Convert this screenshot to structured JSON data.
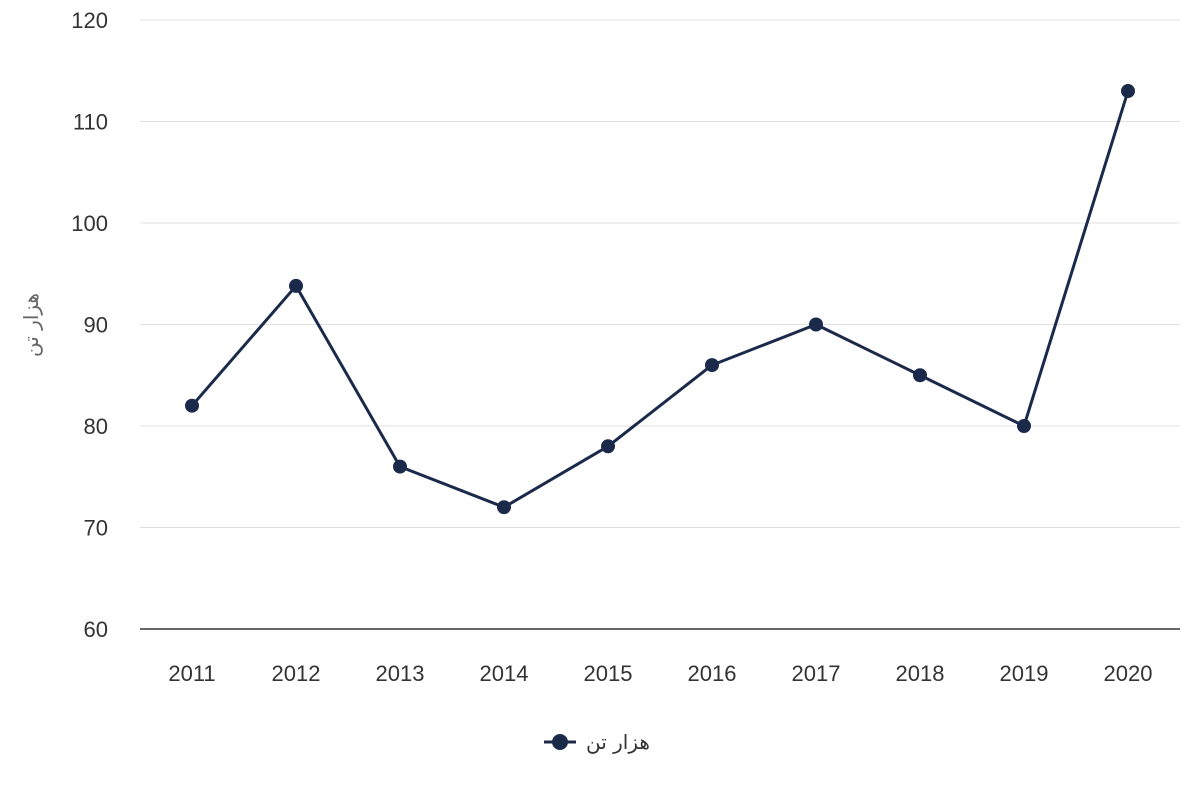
{
  "chart_data": {
    "type": "line",
    "title": "",
    "xlabel": "",
    "ylabel": "هزار تن",
    "categories": [
      "2011",
      "2012",
      "2013",
      "2014",
      "2015",
      "2016",
      "2017",
      "2018",
      "2019",
      "2020"
    ],
    "series": [
      {
        "name": "هزار تن",
        "values": [
          82,
          93.8,
          76,
          72,
          78,
          86,
          90,
          85,
          80,
          113
        ],
        "color": "#1b2a4a"
      }
    ],
    "ylim": [
      60,
      120
    ],
    "yticks": [
      "60",
      "70",
      "80",
      "90",
      "100",
      "110",
      "120"
    ],
    "grid": true,
    "legend_position": "bottom-center"
  }
}
